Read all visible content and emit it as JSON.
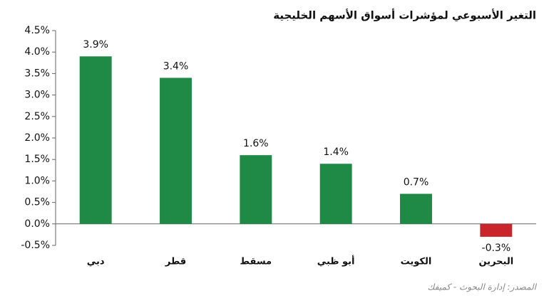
{
  "chart_data": {
    "type": "bar",
    "title": "التغير الأسبوعي لمؤشرات أسواق الأسهم الخليجية",
    "source": "المصدر: إدارة البحوث - كميفك",
    "categories": [
      "دبي",
      "قطر",
      "مسقط",
      "أبو ظبي",
      "الكويت",
      "البحرين"
    ],
    "values": [
      3.9,
      3.4,
      1.6,
      1.4,
      0.7,
      -0.3
    ],
    "value_labels": [
      "3.9%",
      "3.4%",
      "1.6%",
      "1.4%",
      "0.7%",
      "-0.3%"
    ],
    "color": "#1e8a45",
    "negative_color": "#c8262c",
    "ylim": [
      -0.5,
      4.5
    ],
    "yticks": [
      {
        "value": -0.5,
        "label": "-0.5%"
      },
      {
        "value": 0,
        "label": "0.0%"
      },
      {
        "value": 0.5,
        "label": "0.5%"
      },
      {
        "value": 1,
        "label": "1.0%"
      },
      {
        "value": 1.5,
        "label": "1.5%"
      },
      {
        "value": 2,
        "label": "2.0%"
      },
      {
        "value": 2.5,
        "label": "2.5%"
      },
      {
        "value": 3,
        "label": "3.0%"
      },
      {
        "value": 3.5,
        "label": "3.5%"
      },
      {
        "value": 4,
        "label": "4.0%"
      },
      {
        "value": 4.5,
        "label": "4.5%"
      }
    ],
    "grid": false
  }
}
